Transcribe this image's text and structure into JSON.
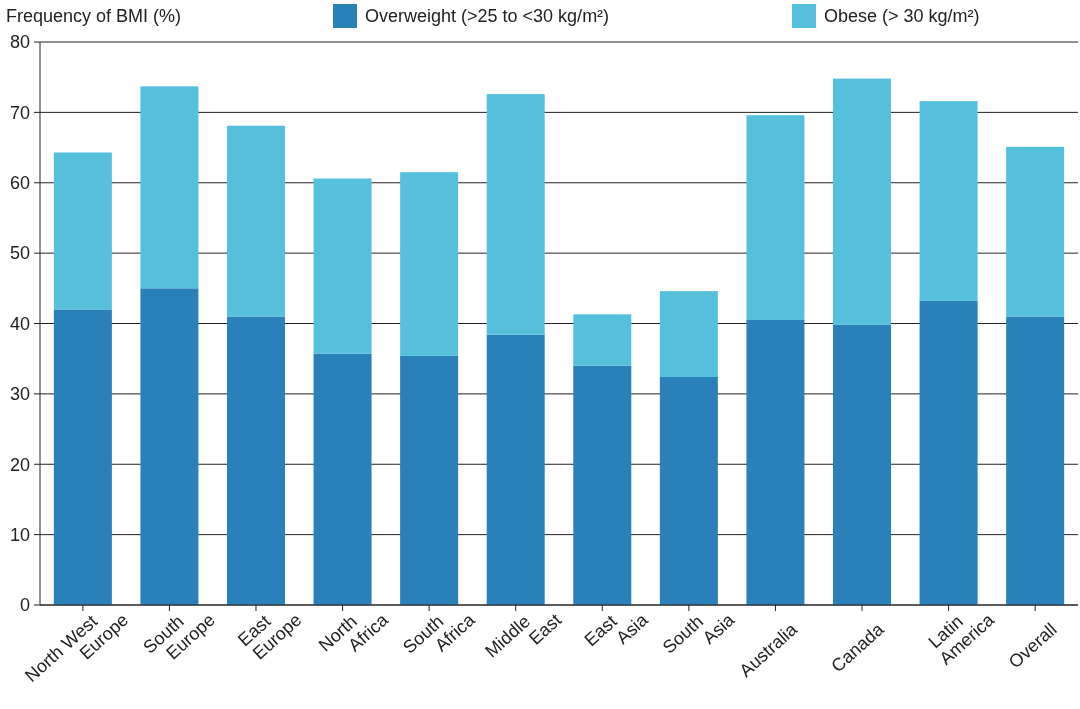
{
  "chart_data": {
    "type": "bar",
    "stacked": true,
    "ylabel": "Frequency of BMI (%)",
    "categories": [
      "North West Europe",
      "South Europe",
      "East Europe",
      "North Africa",
      "South Africa",
      "Middle East",
      "East Asia",
      "South Asia",
      "Australia",
      "Canada",
      "Latin America",
      "Overall"
    ],
    "series": [
      {
        "name": "Overweight (>25 to <30 kg/m²)",
        "color": "#2a80b9",
        "values": [
          42.0,
          45.0,
          41.0,
          35.7,
          35.4,
          38.4,
          34.0,
          32.4,
          40.5,
          39.8,
          43.2,
          41.0
        ]
      },
      {
        "name": "Obese (> 30 kg/m²)",
        "color": "#56c0dc",
        "values": [
          22.3,
          28.7,
          27.1,
          24.9,
          26.1,
          34.2,
          7.3,
          12.2,
          29.1,
          35.0,
          28.4,
          24.1
        ]
      }
    ],
    "ylim": [
      0,
      80
    ],
    "yticks": [
      0,
      10,
      20,
      30,
      40,
      50,
      60,
      70,
      80
    ],
    "grid": "y",
    "legend": "top"
  }
}
